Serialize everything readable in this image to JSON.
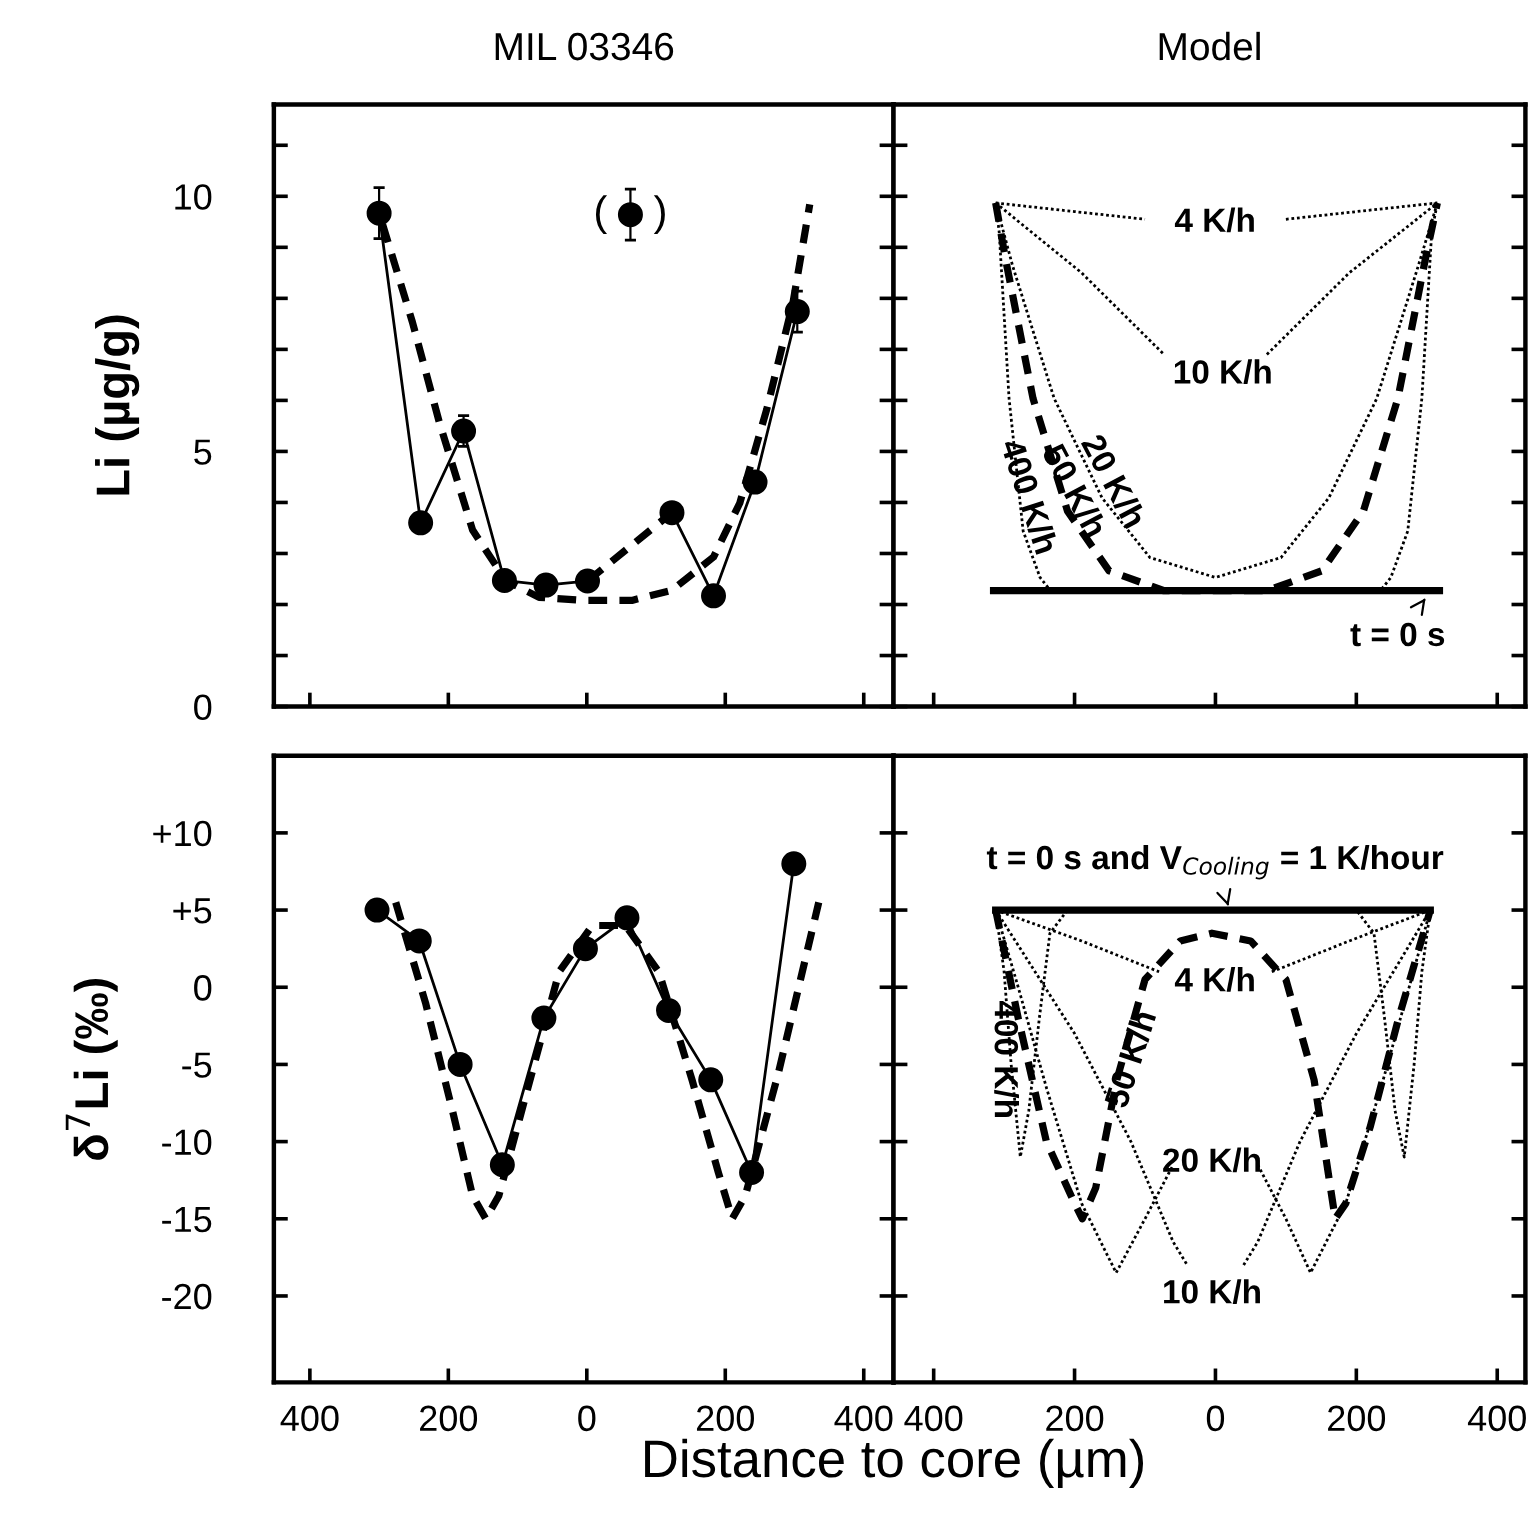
{
  "chart_data": [
    {
      "type": "line",
      "title": "MIL 03346",
      "ylabel": "Li (µg/g)",
      "xlim": [
        -452,
        443
      ],
      "xticks": [
        -400,
        -200,
        0,
        200,
        400
      ],
      "ylim": [
        0,
        11.8
      ],
      "yticks": [
        0,
        {
          "value": 1,
          "label": null
        },
        {
          "value": 2,
          "label": null
        },
        {
          "value": 3,
          "label": null
        },
        {
          "value": 4,
          "label": null
        },
        5,
        {
          "value": 6,
          "label": null
        },
        {
          "value": 7,
          "label": null
        },
        {
          "value": 8,
          "label": null
        },
        {
          "value": 9,
          "label": null
        },
        10,
        {
          "value": 11,
          "label": null
        }
      ],
      "tick_labels": "y",
      "grid": false,
      "legend": false,
      "series": [
        {
          "color": "#000000",
          "marker": "circle",
          "line_style": "solid",
          "x": [
            -300,
            -240,
            -178,
            -119,
            -59,
            1
          ],
          "values": [
            9.67,
            3.6,
            5.4,
            2.47,
            2.38,
            2.46
          ],
          "errors": [
            0.5,
            null,
            0.3,
            null,
            null,
            null
          ]
        },
        {
          "color": "#000000",
          "marker": "circle",
          "line_style": "solid",
          "x": [
            123,
            183,
            243,
            304
          ],
          "values": [
            3.8,
            2.17,
            4.4,
            7.74
          ],
          "errors": [
            null,
            null,
            null,
            0.4
          ]
        },
        {
          "color": "#000000",
          "marker": "none",
          "line_style": "dashed",
          "x": [
            1,
            123
          ],
          "values": [
            2.46,
            3.8
          ]
        },
        {
          "type": "scatter",
          "color": "#000000",
          "marker": "circle",
          "x": [
            63
          ],
          "values": [
            9.64
          ],
          "errors": [
            0.5
          ]
        },
        {
          "color": "#000000",
          "marker": "none",
          "line_style": "dashed",
          "x": [
            -295,
            -252,
            -213,
            -165,
            -117,
            -69,
            -2,
            65,
            123,
            183,
            221,
            260,
            298,
            322
          ],
          "values": [
            9.45,
            7.54,
            5.57,
            3.46,
            2.47,
            2.14,
            2.08,
            2.08,
            2.28,
            2.93,
            3.99,
            5.83,
            7.93,
            9.84
          ]
        }
      ],
      "annotations": [
        {
          "text": "(    )",
          "x": 63,
          "y": 9.64
        }
      ]
    },
    {
      "type": "line",
      "title": "Model",
      "xlim": [
        -457,
        440
      ],
      "xticks": [
        -400,
        -200,
        0,
        200,
        400
      ],
      "ylim": [
        0,
        11.8
      ],
      "yticks": [
        0,
        1,
        2,
        3,
        4,
        5,
        6,
        7,
        8,
        9,
        10,
        11
      ],
      "tick_labels": false,
      "grid": false,
      "legend": false,
      "series": [
        {
          "color": "#000000",
          "marker": "none",
          "line_style": "solid",
          "x": [
            -315,
            318
          ],
          "values": [
            2.27,
            2.27
          ]
        },
        {
          "name": "4 K/h",
          "color": "#000000",
          "marker": "none",
          "line_style": "dotted",
          "x": [
            -312,
            -200,
            -100,
            0,
            100,
            200,
            315
          ],
          "values": [
            9.87,
            9.7,
            9.55,
            null,
            9.55,
            9.7,
            9.87
          ]
        },
        {
          "name": "10 K/h",
          "color": "#000000",
          "marker": "none",
          "line_style": "dotted",
          "x": [
            -312,
            -190,
            -73,
            0,
            73,
            190,
            315
          ],
          "values": [
            9.87,
            8.5,
            6.9,
            null,
            6.9,
            8.5,
            9.87
          ]
        },
        {
          "name": "20 K/h",
          "color": "#000000",
          "marker": "none",
          "line_style": "dotted",
          "x": [
            -312,
            -288,
            -229,
            -161,
            -93,
            0,
            93,
            161,
            229,
            288,
            315
          ],
          "values": [
            9.87,
            8.64,
            6.04,
            4.09,
            2.92,
            2.53,
            2.92,
            4.09,
            6.04,
            8.64,
            9.87
          ]
        },
        {
          "name": "50 K/h",
          "color": "#000000",
          "marker": "none",
          "line_style": "dashed",
          "x": [
            -312,
            -298,
            -259,
            -210,
            -151,
            -73,
            0,
            73,
            151,
            210,
            259,
            298,
            315
          ],
          "values": [
            9.87,
            8.77,
            6.04,
            3.83,
            2.66,
            2.27,
            2.27,
            2.27,
            2.66,
            3.83,
            6.04,
            8.77,
            9.87
          ]
        },
        {
          "name": "400 K/h",
          "color": "#000000",
          "marker": "none",
          "line_style": "dotted",
          "x": [
            -312,
            -307,
            -293,
            -273,
            -249,
            -234,
            234,
            249,
            273,
            293,
            307,
            315
          ],
          "values": [
            9.87,
            9.3,
            6.04,
            3.44,
            2.53,
            2.27,
            2.27,
            2.53,
            3.44,
            6.04,
            9.3,
            9.87
          ]
        }
      ],
      "annotations": [
        "t = 0 s"
      ]
    },
    {
      "type": "line",
      "ylabel": "δ$^{7}$Li (‰)",
      "xlabel": "Distance to core (µm)",
      "xlim": [
        -452,
        443
      ],
      "xticks": [
        {
          "value": -400,
          "label": "400"
        },
        {
          "value": -200,
          "label": "200"
        },
        {
          "value": 0,
          "label": "0"
        },
        {
          "value": 200,
          "label": "200"
        },
        {
          "value": 400,
          "label": "400"
        }
      ],
      "ylim": [
        -25.6,
        15
      ],
      "yticks": [
        {
          "value": -20,
          "label": "-20"
        },
        {
          "value": -15,
          "label": "-15"
        },
        {
          "value": -10,
          "label": "-10"
        },
        {
          "value": -5,
          "label": "-5"
        },
        0,
        {
          "value": 5,
          "label": "+5"
        },
        {
          "value": 10,
          "label": "+10"
        }
      ],
      "grid": false,
      "legend": false,
      "series": [
        {
          "color": "#000000",
          "marker": "circle",
          "line_style": "solid",
          "x": [
            -303,
            -242,
            -183,
            -122,
            -62,
            -2,
            58,
            118,
            179,
            238,
            299
          ],
          "values": [
            5.0,
            3.0,
            -5.0,
            -11.5,
            -2.0,
            2.5,
            4.5,
            -1.5,
            -6.0,
            -12.0,
            8.0
          ]
        },
        {
          "color": "#000000",
          "marker": "none",
          "line_style": "dashed",
          "x": [
            -276,
            -233,
            -194,
            -165,
            -146,
            -127,
            -88,
            -40,
            8,
            56,
            104,
            152,
            190,
            210,
            229,
            277,
            335
          ],
          "values": [
            5.5,
            -1,
            -8,
            -13.5,
            -15,
            -13.5,
            -7,
            1,
            4,
            4,
            1,
            -6,
            -12,
            -15,
            -13.5,
            -5.5,
            5.5
          ]
        }
      ]
    },
    {
      "type": "line",
      "xlim": [
        -457,
        440
      ],
      "xticks": [
        {
          "value": -400,
          "label": "400"
        },
        {
          "value": -200,
          "label": "200"
        },
        {
          "value": 0,
          "label": "0"
        },
        {
          "value": 200,
          "label": "200"
        },
        {
          "value": 400,
          "label": "400"
        }
      ],
      "ylim": [
        -25.6,
        15
      ],
      "yticks": [
        -20,
        -15,
        -10,
        -5,
        0,
        5,
        10
      ],
      "tick_labels": "x",
      "grid": false,
      "legend": false,
      "series": [
        {
          "name": "t = 0 s and V$_{Cooling}$ = 1 K/hour",
          "color": "#000000",
          "marker": "none",
          "line_style": "solid",
          "x": [
            -312,
            305
          ],
          "values": [
            5,
            5
          ]
        },
        {
          "name": "4 K/h",
          "color": "#000000",
          "marker": "none",
          "line_style": "dotted",
          "x": [
            -312,
            -190,
            -80,
            0,
            80,
            190,
            305
          ],
          "values": [
            5,
            3,
            1,
            null,
            1,
            3,
            5
          ]
        },
        {
          "name": "10 K/h",
          "color": "#000000",
          "marker": "none",
          "line_style": "dotted",
          "x": [
            -312,
            -200,
            -120,
            -60,
            -40,
            0,
            40,
            60,
            120,
            200,
            305
          ],
          "values": [
            5,
            -3,
            -10,
            -16.5,
            -18,
            null,
            -18,
            -16.5,
            -10,
            -3,
            5
          ]
        },
        {
          "name": "20 K/h",
          "color": "#000000",
          "marker": "none",
          "line_style": "dotted",
          "x": [
            -312,
            -280,
            -240,
            -190,
            -141,
            -100,
            -60,
            0,
            60,
            100,
            135,
            185,
            235,
            275,
            305
          ],
          "values": [
            5,
            0,
            -6.5,
            -14,
            -18.5,
            -15,
            -11.5,
            null,
            -11.5,
            -15,
            -18.5,
            -14,
            -6.5,
            0,
            5
          ]
        },
        {
          "name": "50 K/h",
          "color": "#000000",
          "marker": "none",
          "line_style": "dashed",
          "x": [
            -312,
            -280,
            -240,
            -200,
            -189,
            -170,
            -140,
            -100,
            -50,
            -5,
            50,
            100,
            140,
            170,
            185,
            220,
            260,
            305
          ],
          "values": [
            5,
            -2,
            -10,
            -14,
            -15,
            -13,
            -6,
            0.5,
            3,
            3.5,
            3,
            0.5,
            -6,
            -15,
            -14,
            -9,
            -2,
            5
          ]
        },
        {
          "name": "400 K/h",
          "color": "#000000",
          "marker": "none",
          "line_style": "dotted",
          "x": [
            -312,
            -300,
            -290,
            -277,
            -265,
            -250,
            -235,
            -210,
            -200,
            200,
            225,
            240,
            255,
            268,
            282,
            293,
            305
          ],
          "values": [
            5,
            1,
            -5,
            -11,
            -8,
            -2,
            3.5,
            5,
            5,
            5,
            3.5,
            -2,
            -8,
            -11,
            -5,
            1,
            5
          ]
        }
      ]
    }
  ]
}
